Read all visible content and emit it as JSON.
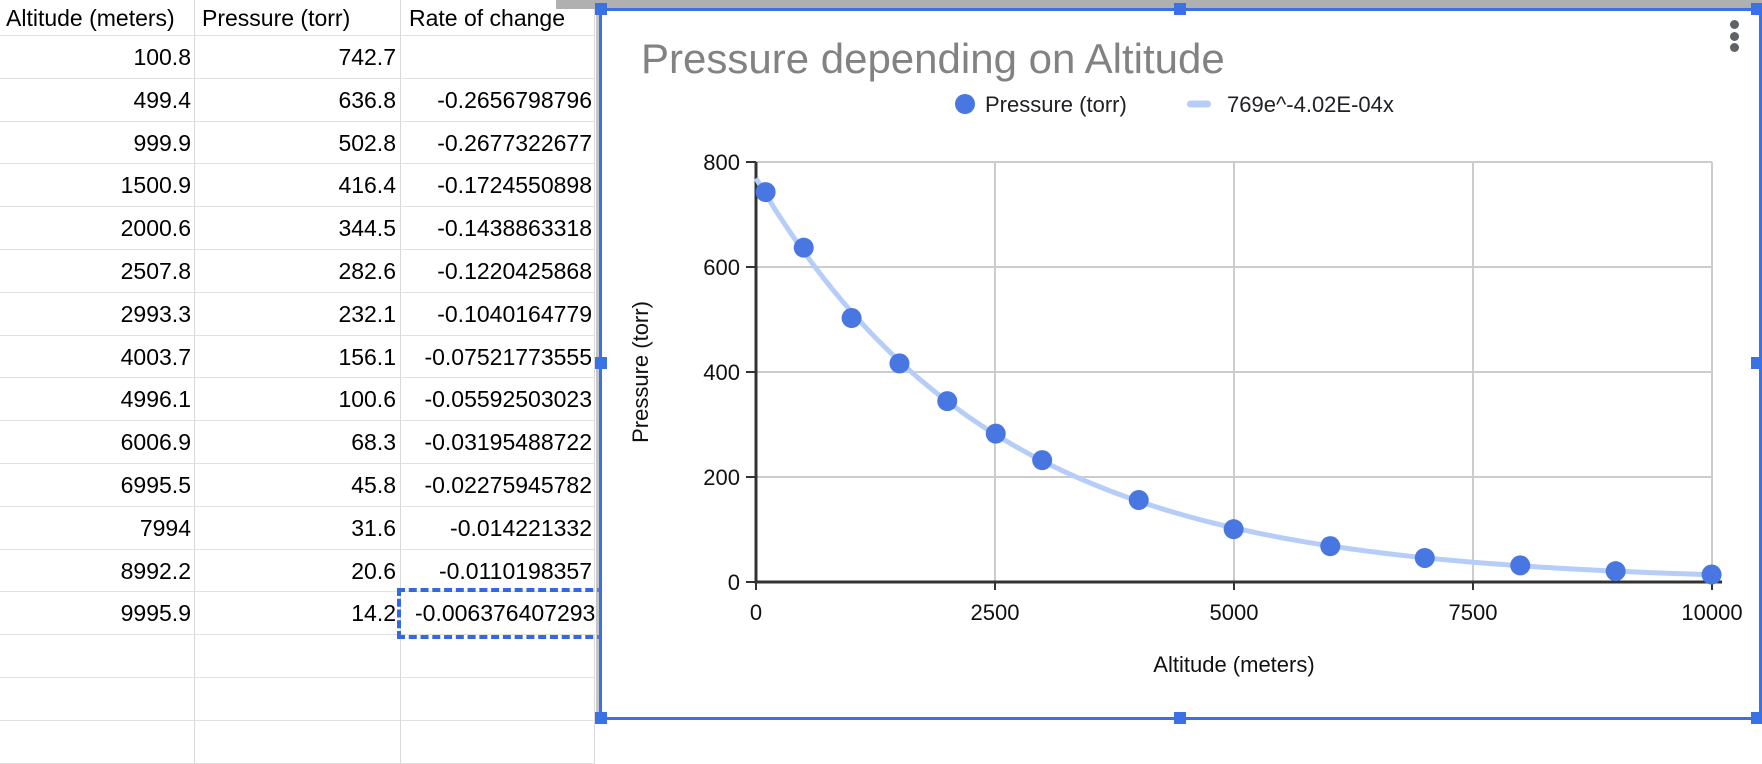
{
  "sheet": {
    "columns": [
      "Altitude (meters)",
      "Pressure (torr)",
      "Rate of change"
    ],
    "rows": [
      [
        "100.8",
        "742.7",
        ""
      ],
      [
        "499.4",
        "636.8",
        "-0.2656798796"
      ],
      [
        "999.9",
        "502.8",
        "-0.2677322677"
      ],
      [
        "1500.9",
        "416.4",
        "-0.1724550898"
      ],
      [
        "2000.6",
        "344.5",
        "-0.1438863318"
      ],
      [
        "2507.8",
        "282.6",
        "-0.1220425868"
      ],
      [
        "2993.3",
        "232.1",
        "-0.1040164779"
      ],
      [
        "4003.7",
        "156.1",
        "-0.07521773555"
      ],
      [
        "4996.1",
        "100.6",
        "-0.05592503023"
      ],
      [
        "6006.9",
        "68.3",
        "-0.03195488722"
      ],
      [
        "6995.5",
        "45.8",
        "-0.02275945782"
      ],
      [
        "7994",
        "31.6",
        "-0.014221332"
      ],
      [
        "8992.2",
        "20.6",
        "-0.0110198357"
      ],
      [
        "9995.9",
        "14.2",
        "-0.006376407293"
      ]
    ],
    "copied_cell": {
      "row_index": 13,
      "col_index": 2
    }
  },
  "chart_data": {
    "type": "scatter",
    "title": "Pressure depending on Altitude",
    "xlabel": "Altitude (meters)",
    "ylabel": "Pressure (torr)",
    "xlim": [
      0,
      10000
    ],
    "ylim": [
      0,
      800
    ],
    "x_ticks": [
      "0",
      "2500",
      "5000",
      "7500",
      "10000"
    ],
    "y_ticks": [
      "0",
      "200",
      "400",
      "600",
      "800"
    ],
    "grid": true,
    "legend_position": "top",
    "series": [
      {
        "name": "Pressure (torr)",
        "type": "scatter",
        "color": "#4877e2",
        "x": [
          100.8,
          499.4,
          999.9,
          1500.9,
          2000.6,
          2507.8,
          2993.3,
          4003.7,
          4996.1,
          6006.9,
          6995.5,
          7994,
          8992.2,
          9995.9
        ],
        "y": [
          742.7,
          636.8,
          502.8,
          416.4,
          344.5,
          282.6,
          232.1,
          156.1,
          100.6,
          68.3,
          45.8,
          31.6,
          20.6,
          14.2
        ]
      },
      {
        "name": "769e^-4.02E-04x",
        "type": "trendline-exponential",
        "color": "#b6cdf8",
        "a": 769,
        "b": -0.000402
      }
    ],
    "legend": [
      {
        "label": "Pressure (torr)",
        "marker": "circle",
        "color": "#4877e2"
      },
      {
        "label": "769e^-4.02E-04x",
        "marker": "line",
        "color": "#b6cdf8"
      }
    ]
  },
  "icons": {
    "chart_menu": "kebab-menu-icon"
  },
  "colors": {
    "selection_blue": "#3a72e6",
    "copy_dash_blue": "#3069e2",
    "point_blue": "#4877e2",
    "trendline_blue": "#b6cdf8",
    "plot_grid_gray": "#cccccc",
    "axis_dark": "#333333",
    "chart_title_gray": "#828282",
    "sheet_gridline_h": "#e1e1e1",
    "sheet_gridline_v": "#d9d9d9",
    "kebab_gray": "#5f6368",
    "top_strip_gray": "#b0b0b0"
  }
}
